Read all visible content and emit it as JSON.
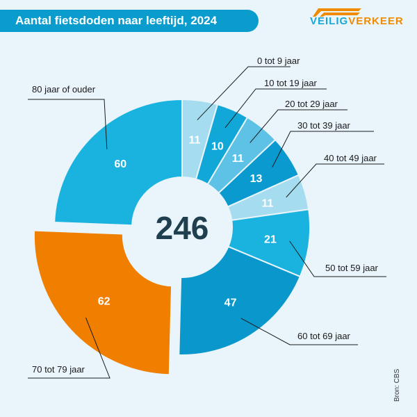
{
  "header": {
    "title": "Aantal fietsdoden naar leeftijd, 2024"
  },
  "logo": {
    "text_main": "VEILIG",
    "text_accent": "VERKEER",
    "icon": "road-stripes-icon"
  },
  "source": "Bron: CBS",
  "chart_data": {
    "type": "pie",
    "variant": "donut",
    "title": "Aantal fietsdoden naar leeftijd, 2024",
    "total": 246,
    "categories": [
      "0 tot 9 jaar",
      "10 tot 19 jaar",
      "20 tot 29 jaar",
      "30 tot 39 jaar",
      "40 tot 49 jaar",
      "50 tot 59 jaar",
      "60 tot 69 jaar",
      "70 tot 79 jaar",
      "80 jaar of ouder"
    ],
    "values": [
      11,
      10,
      11,
      13,
      11,
      21,
      47,
      62,
      60
    ],
    "colors": [
      "#a6dcf0",
      "#11a8d8",
      "#5ec1e6",
      "#0b9ad0",
      "#a6dcf0",
      "#1ab3df",
      "#0a98cc",
      "#f07f00",
      "#1ab3df"
    ],
    "highlighted": "70 tot 79 jaar",
    "legend": "none"
  }
}
